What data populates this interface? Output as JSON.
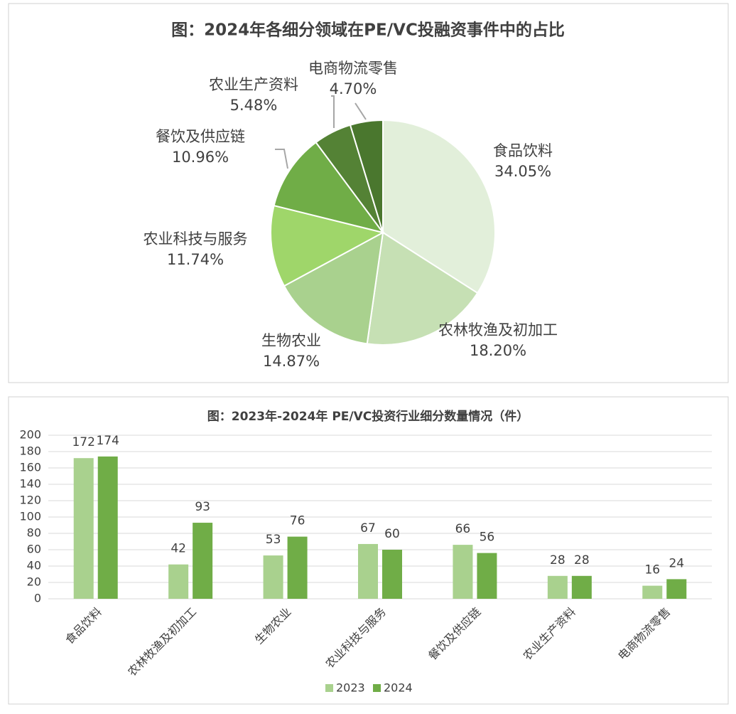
{
  "chart_data": [
    {
      "type": "pie",
      "title": "图：2024年各细分领域在PE/VC投融资事件中的占比",
      "categories": [
        "食品饮料",
        "农林牧渔及初加工",
        "生物农业",
        "农业科技与服务",
        "餐饮及供应链",
        "农业生产资料",
        "电商物流零售"
      ],
      "values": [
        34.05,
        18.2,
        14.87,
        11.74,
        10.96,
        5.48,
        4.7
      ],
      "value_labels": [
        "34.05%",
        "18.20%",
        "14.87%",
        "11.74%",
        "10.96%",
        "5.48%",
        "4.70%"
      ],
      "colors": [
        "#e2efda",
        "#c6e0b4",
        "#a9d18e",
        "#9fd66a",
        "#70ad47",
        "#548235",
        "#4a772e"
      ]
    },
    {
      "type": "bar",
      "title": "图：2023年-2024年 PE/VC投资行业细分数量情况（件）",
      "categories": [
        "食品饮料",
        "农林牧渔及初加工",
        "生物农业",
        "农业科技与服务",
        "餐饮及供应链",
        "农业生产资料",
        "电商物流零售"
      ],
      "series": [
        {
          "name": "2023",
          "color": "#a9d18e",
          "values": [
            172,
            42,
            53,
            67,
            66,
            28,
            16
          ]
        },
        {
          "name": "2024",
          "color": "#70ad47",
          "values": [
            174,
            93,
            76,
            60,
            56,
            28,
            24
          ]
        }
      ],
      "ylim": [
        0,
        200
      ],
      "yticks": [
        0,
        20,
        40,
        60,
        80,
        100,
        120,
        140,
        160,
        180,
        200
      ],
      "grid": true
    }
  ]
}
